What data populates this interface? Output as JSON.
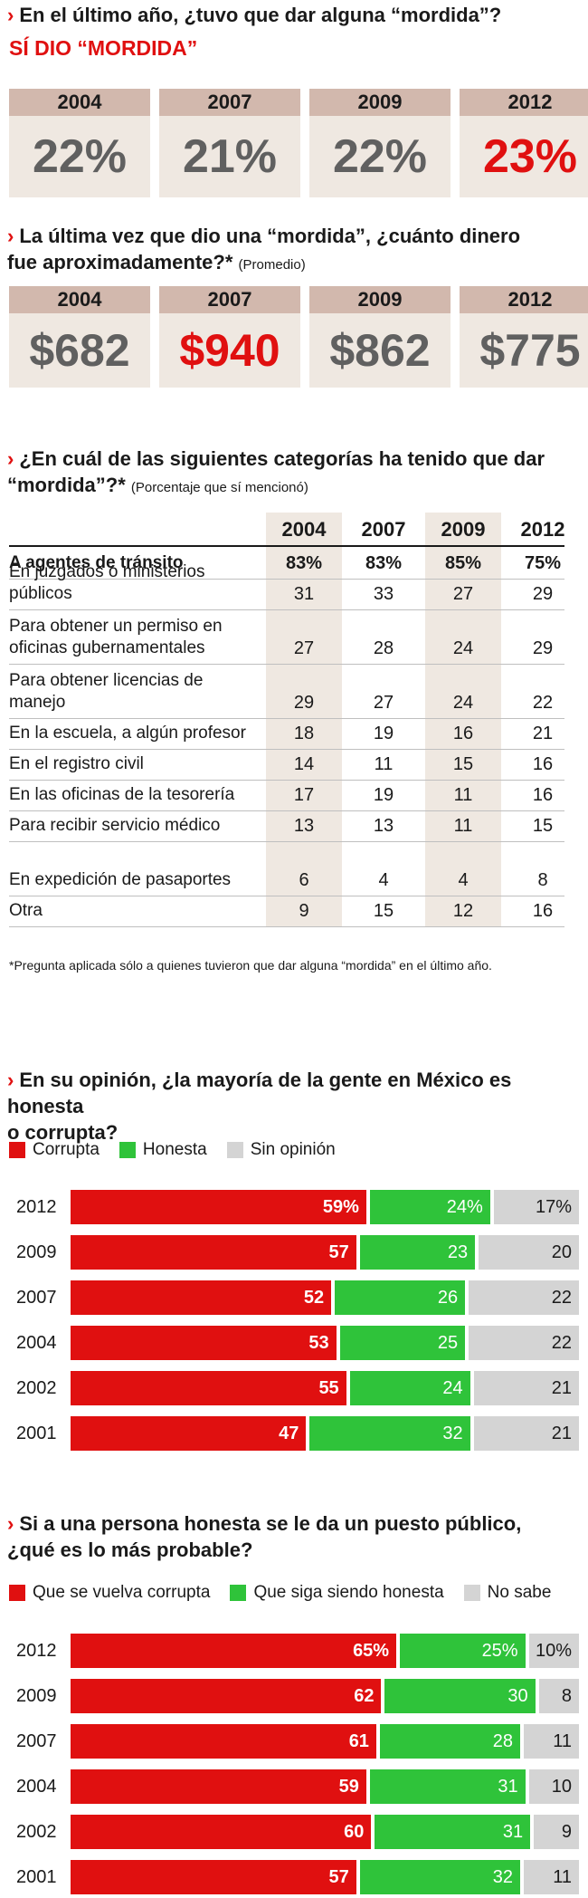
{
  "q1": {
    "arrow": "›",
    "text": "En el último año, ¿tuvo que dar alguna “mordida”?",
    "subhead": "SÍ DIO “MORDIDA”",
    "cards": [
      {
        "year": "2004",
        "value": "22%",
        "highlight": false
      },
      {
        "year": "2007",
        "value": "21%",
        "highlight": false
      },
      {
        "year": "2009",
        "value": "22%",
        "highlight": false
      },
      {
        "year": "2012",
        "value": "23%",
        "highlight": true
      }
    ]
  },
  "q2": {
    "arrow": "›",
    "line1": "La última vez que dio una “mordida”, ¿cuánto dinero",
    "line2": "fue aproximadamente?*",
    "note": "(Promedio)",
    "cards": [
      {
        "year": "2004",
        "value": "$682",
        "highlight": false
      },
      {
        "year": "2007",
        "value": "$940",
        "highlight": true
      },
      {
        "year": "2009",
        "value": "$862",
        "highlight": false
      },
      {
        "year": "2012",
        "value": "$775",
        "highlight": false
      }
    ]
  },
  "q3": {
    "arrow": "›",
    "line1": "¿En cuál de las siguientes categorías ha tenido que dar",
    "line2": "“mordida”?*",
    "note": "(Porcentaje que sí mencionó)",
    "years": [
      "2004",
      "2007",
      "2009",
      "2012"
    ],
    "rows": [
      {
        "label": "A agentes de tránsito",
        "values": [
          "83%",
          "83%",
          "85%",
          "75%"
        ],
        "bold": true
      },
      {
        "label": "En juzgados o ministerios públicos",
        "values": [
          "31",
          "33",
          "27",
          "29"
        ]
      },
      {
        "label": "Para obtener un permiso en oficinas gubernamentales",
        "values": [
          "27",
          "28",
          "24",
          "29"
        ]
      },
      {
        "label": "Para obtener licencias de manejo",
        "values": [
          "29",
          "27",
          "24",
          "22"
        ]
      },
      {
        "label": "En la escuela, a algún profesor",
        "values": [
          "18",
          "19",
          "16",
          "21"
        ]
      },
      {
        "label": "En el registro civil",
        "values": [
          "14",
          "11",
          "15",
          "16"
        ]
      },
      {
        "label": "En las oficinas de la tesorería",
        "values": [
          "17",
          "19",
          "11",
          "16"
        ]
      },
      {
        "label": "Para recibir servicio médico",
        "values": [
          "13",
          "13",
          "11",
          "15"
        ]
      },
      {
        "label": "En expedición de pasaportes",
        "values": [
          "6",
          "4",
          "4",
          "8"
        ]
      },
      {
        "label": "Otra",
        "values": [
          "9",
          "15",
          "12",
          "16"
        ]
      }
    ],
    "footnote": "*Pregunta aplicada sólo a quienes tuvieron que dar alguna “mordida” en el último año."
  },
  "q4": {
    "arrow": "›",
    "line1": "En su opinión, ¿la mayoría de la gente en México es honesta",
    "line2": "o corrupta?",
    "legend": [
      "Corrupta",
      "Honesta",
      "Sin opinión"
    ]
  },
  "q5": {
    "arrow": "›",
    "line1": "Si a una persona honesta se le da un puesto público,",
    "line2": "¿qué es lo más probable?",
    "legend": [
      "Que se vuelva corrupta",
      "Que siga siendo honesta",
      "No sabe"
    ]
  },
  "colors": {
    "red": "#e01010",
    "green": "#2fc33a",
    "gray": "#d4d4d4",
    "tan": "#d2b8ad",
    "cream": "#efe8e1"
  },
  "chart_data": [
    {
      "type": "bar",
      "orientation": "horizontal-stacked",
      "title": "En su opinión, ¿la mayoría de la gente en México es honesta o corrupta?",
      "categories": [
        "2012",
        "2009",
        "2007",
        "2004",
        "2002",
        "2001"
      ],
      "series": [
        {
          "name": "Corrupta",
          "values": [
            59,
            57,
            52,
            53,
            55,
            47
          ],
          "labels": [
            "59%",
            "57",
            "52",
            "53",
            "55",
            "47"
          ]
        },
        {
          "name": "Honesta",
          "values": [
            24,
            23,
            26,
            25,
            24,
            32
          ],
          "labels": [
            "24%",
            "23",
            "26",
            "25",
            "24",
            "32"
          ]
        },
        {
          "name": "Sin opinión",
          "values": [
            17,
            20,
            22,
            22,
            21,
            21
          ],
          "labels": [
            "17%",
            "20",
            "22",
            "22",
            "21",
            "21"
          ]
        }
      ],
      "xlim": [
        0,
        100
      ]
    },
    {
      "type": "bar",
      "orientation": "horizontal-stacked",
      "title": "Si a una persona honesta se le da un puesto público, ¿qué es lo más probable?",
      "categories": [
        "2012",
        "2009",
        "2007",
        "2004",
        "2002",
        "2001"
      ],
      "series": [
        {
          "name": "Que se vuelva corrupta",
          "values": [
            65,
            62,
            61,
            59,
            60,
            57
          ],
          "labels": [
            "65%",
            "62",
            "61",
            "59",
            "60",
            "57"
          ]
        },
        {
          "name": "Que siga siendo honesta",
          "values": [
            25,
            30,
            28,
            31,
            31,
            32
          ],
          "labels": [
            "25%",
            "30",
            "28",
            "31",
            "31",
            "32"
          ]
        },
        {
          "name": "No sabe",
          "values": [
            10,
            8,
            11,
            10,
            9,
            11
          ],
          "labels": [
            "10%",
            "8",
            "11",
            "10",
            "9",
            "11"
          ]
        }
      ],
      "xlim": [
        0,
        100
      ]
    }
  ]
}
